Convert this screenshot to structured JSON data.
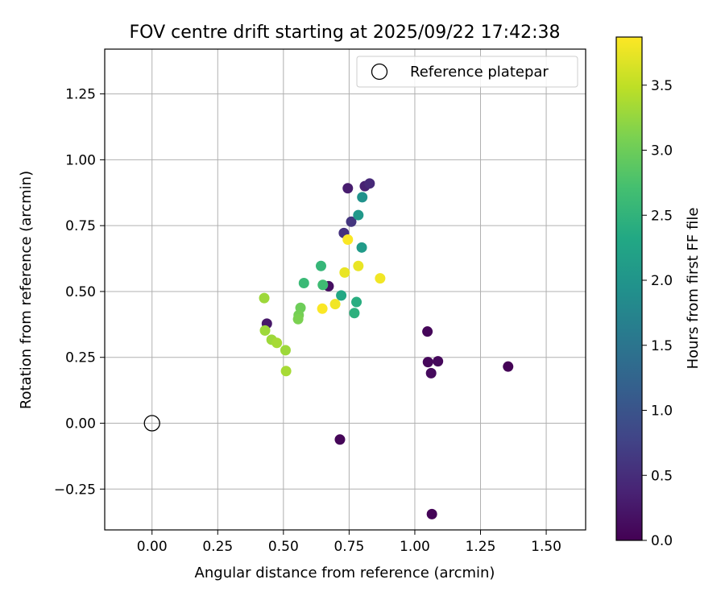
{
  "chart_data": {
    "type": "scatter",
    "title": "FOV centre drift starting at 2025/09/22 17:42:38",
    "xlabel": "Angular distance from reference (arcmin)",
    "ylabel": "Rotation from reference (arcmin)",
    "xlim": [
      -0.18,
      1.65
    ],
    "ylim": [
      -0.405,
      1.42
    ],
    "x_ticks": [
      0.0,
      0.25,
      0.5,
      0.75,
      1.0,
      1.25,
      1.5
    ],
    "x_tick_labels": [
      "0.00",
      "0.25",
      "0.50",
      "0.75",
      "1.00",
      "1.25",
      "1.50"
    ],
    "y_ticks": [
      -0.25,
      0.0,
      0.25,
      0.5,
      0.75,
      1.0,
      1.25
    ],
    "y_tick_labels": [
      "−0.25",
      "0.00",
      "0.25",
      "0.50",
      "0.75",
      "1.00",
      "1.25"
    ],
    "grid": true,
    "legend": {
      "position": "top-right",
      "entries": [
        {
          "label": "Reference platepar",
          "marker": "open-circle"
        }
      ]
    },
    "reference_point": {
      "x": 0.0,
      "y": 0.0,
      "marker": "open-circle"
    },
    "colorbar": {
      "label": "Hours from first FF file",
      "colormap": "viridis",
      "range": [
        0.0,
        3.87
      ],
      "ticks": [
        0.0,
        0.5,
        1.0,
        1.5,
        2.0,
        2.5,
        3.0,
        3.5
      ],
      "tick_labels": [
        "0.0",
        "0.5",
        "1.0",
        "1.5",
        "2.0",
        "2.5",
        "3.0",
        "3.5"
      ]
    },
    "points": [
      {
        "x": 1.355,
        "y": 0.215,
        "c": 0.02
      },
      {
        "x": 1.065,
        "y": -0.345,
        "c": 0.03
      },
      {
        "x": 0.715,
        "y": -0.062,
        "c": 0.05
      },
      {
        "x": 1.048,
        "y": 0.348,
        "c": 0.06
      },
      {
        "x": 1.05,
        "y": 0.232,
        "c": 0.07
      },
      {
        "x": 1.088,
        "y": 0.235,
        "c": 0.08
      },
      {
        "x": 1.062,
        "y": 0.19,
        "c": 0.1
      },
      {
        "x": 0.672,
        "y": 0.52,
        "c": 0.15
      },
      {
        "x": 0.437,
        "y": 0.378,
        "c": 0.25
      },
      {
        "x": 0.745,
        "y": 0.892,
        "c": 0.3
      },
      {
        "x": 0.81,
        "y": 0.9,
        "c": 0.35
      },
      {
        "x": 0.828,
        "y": 0.91,
        "c": 0.45
      },
      {
        "x": 0.73,
        "y": 0.722,
        "c": 0.55
      },
      {
        "x": 0.758,
        "y": 0.765,
        "c": 0.6
      },
      {
        "x": 0.8,
        "y": 0.858,
        "c": 1.95
      },
      {
        "x": 0.785,
        "y": 0.79,
        "c": 2.05
      },
      {
        "x": 0.798,
        "y": 0.667,
        "c": 2.1
      },
      {
        "x": 0.72,
        "y": 0.485,
        "c": 2.3
      },
      {
        "x": 0.778,
        "y": 0.46,
        "c": 2.4
      },
      {
        "x": 0.77,
        "y": 0.418,
        "c": 2.45
      },
      {
        "x": 0.643,
        "y": 0.597,
        "c": 2.55
      },
      {
        "x": 0.578,
        "y": 0.532,
        "c": 2.6
      },
      {
        "x": 0.65,
        "y": 0.525,
        "c": 2.65
      },
      {
        "x": 0.565,
        "y": 0.438,
        "c": 3.0
      },
      {
        "x": 0.558,
        "y": 0.41,
        "c": 3.05
      },
      {
        "x": 0.556,
        "y": 0.395,
        "c": 3.1
      },
      {
        "x": 0.43,
        "y": 0.352,
        "c": 3.3
      },
      {
        "x": 0.455,
        "y": 0.317,
        "c": 3.3
      },
      {
        "x": 0.475,
        "y": 0.305,
        "c": 3.35
      },
      {
        "x": 0.508,
        "y": 0.277,
        "c": 3.3
      },
      {
        "x": 0.51,
        "y": 0.198,
        "c": 3.35
      },
      {
        "x": 0.427,
        "y": 0.475,
        "c": 3.3
      },
      {
        "x": 0.733,
        "y": 0.572,
        "c": 3.75
      },
      {
        "x": 0.785,
        "y": 0.597,
        "c": 3.75
      },
      {
        "x": 0.868,
        "y": 0.55,
        "c": 3.8
      },
      {
        "x": 0.745,
        "y": 0.697,
        "c": 3.85
      },
      {
        "x": 0.697,
        "y": 0.452,
        "c": 3.8
      },
      {
        "x": 0.648,
        "y": 0.435,
        "c": 3.85
      }
    ]
  }
}
